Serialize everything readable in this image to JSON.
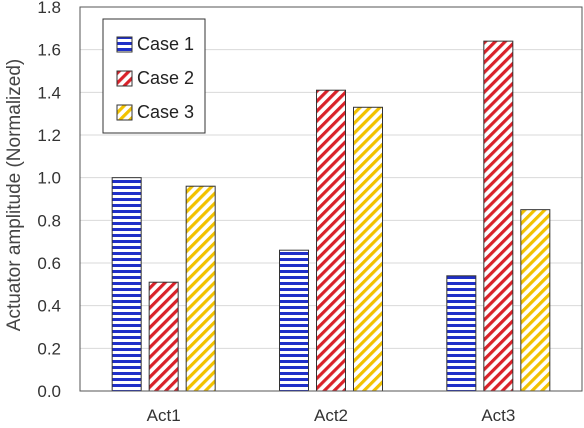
{
  "chart_data": {
    "type": "bar",
    "categories": [
      "Act1",
      "Act2",
      "Act3"
    ],
    "series": [
      {
        "name": "Case 1",
        "values": [
          1.0,
          0.66,
          0.54
        ],
        "color": "#1f2fc8",
        "pattern": "horizontal-stripes"
      },
      {
        "name": "Case 2",
        "values": [
          0.51,
          1.41,
          1.64
        ],
        "color": "#d9222a",
        "pattern": "diagonal-stripes"
      },
      {
        "name": "Case 3",
        "values": [
          0.96,
          1.33,
          0.85
        ],
        "color": "#f2c200",
        "pattern": "diagonal-stripes"
      }
    ],
    "title": "",
    "xlabel": "",
    "ylabel": "Actuator amplitude (Normalized)",
    "ylim": [
      0,
      1.8
    ],
    "yticks": [
      "0.0",
      "0.2",
      "0.4",
      "0.6",
      "0.8",
      "1.0",
      "1.2",
      "1.4",
      "1.6",
      "1.8"
    ],
    "grid": true,
    "legend": "top-left"
  }
}
